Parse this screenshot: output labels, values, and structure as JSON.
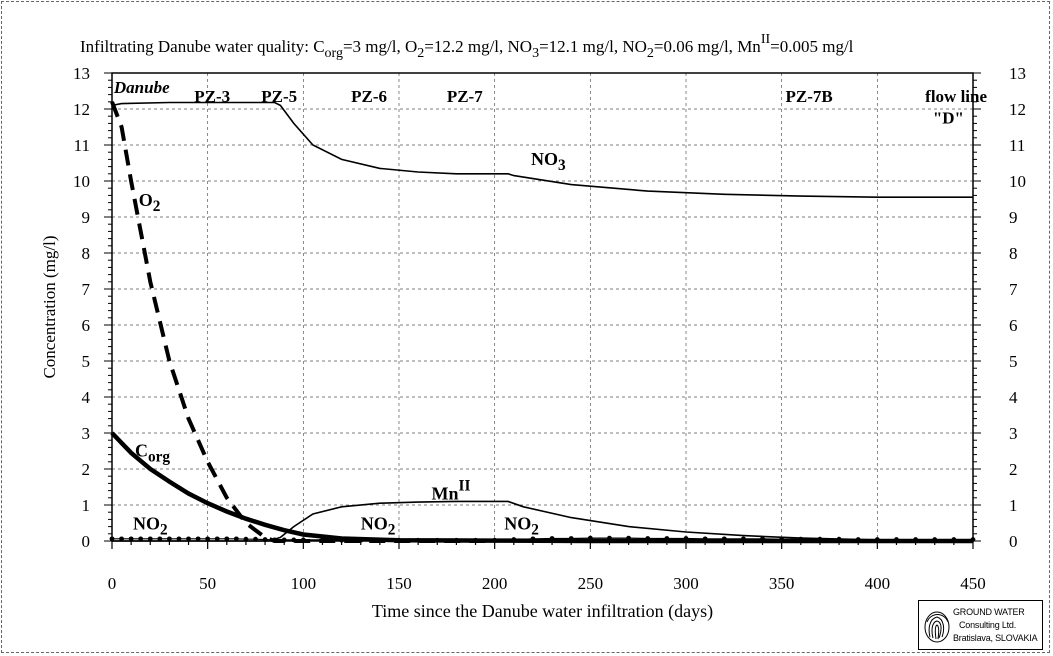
{
  "chart_data": {
    "type": "line",
    "title": {
      "prefix": "Infiltrating Danube water quality: C",
      "parts": [
        {
          "text": "C",
          "sub": "org",
          "sup": "",
          "suffix": "=3 mg/l, "
        },
        {
          "text": "O",
          "sub": "2",
          "sup": "",
          "suffix": "=12.2 mg/l, "
        },
        {
          "text": "NO",
          "sub": "3",
          "sup": "",
          "suffix": "=12.1 mg/l, "
        },
        {
          "text": "NO",
          "sub": "2",
          "sup": "",
          "suffix": "=0.06 mg/l, "
        },
        {
          "text": "Mn",
          "sub": "",
          "sup": "II",
          "suffix": "=0.005 mg/l"
        }
      ],
      "lead": "Infiltrating Danube water quality: "
    },
    "xlabel": "Time since the Danube water infiltration (days)",
    "ylabel": "Concentration (mg/l)",
    "xlim": [
      0,
      450
    ],
    "ylim": [
      0,
      13
    ],
    "x_ticks": [
      0,
      50,
      100,
      150,
      200,
      250,
      300,
      350,
      400,
      450
    ],
    "y_ticks": [
      0,
      1,
      2,
      3,
      4,
      5,
      6,
      7,
      8,
      9,
      10,
      11,
      12,
      13
    ],
    "grid": true,
    "series": [
      {
        "key": "NO3",
        "style": "solid",
        "x": [
          0,
          5,
          30,
          60,
          85,
          88,
          95,
          105,
          120,
          140,
          160,
          180,
          207,
          210,
          240,
          280,
          320,
          360,
          400,
          450
        ],
        "y": [
          12.1,
          12.15,
          12.18,
          12.18,
          12.18,
          12.1,
          11.6,
          11.0,
          10.6,
          10.35,
          10.25,
          10.2,
          10.2,
          10.15,
          9.9,
          9.72,
          9.63,
          9.58,
          9.55,
          9.55
        ]
      },
      {
        "key": "O2",
        "style": "dashed",
        "x": [
          0,
          5,
          10,
          20,
          30,
          40,
          50,
          60,
          70,
          80,
          85,
          90,
          100,
          120,
          150,
          200
        ],
        "y": [
          12.2,
          11.5,
          10.0,
          7.2,
          5.0,
          3.4,
          2.2,
          1.2,
          0.5,
          0.1,
          0.0,
          0.0,
          0.0,
          0.0,
          0.0,
          0.0
        ]
      },
      {
        "key": "Corg",
        "style": "thick",
        "x": [
          0,
          10,
          20,
          30,
          40,
          50,
          60,
          70,
          80,
          90,
          100,
          120,
          150,
          200,
          250,
          300,
          450
        ],
        "y": [
          3.0,
          2.45,
          2.0,
          1.65,
          1.32,
          1.05,
          0.82,
          0.62,
          0.45,
          0.3,
          0.18,
          0.07,
          0.02,
          0.01,
          0.0,
          0.0,
          0.0
        ]
      },
      {
        "key": "MnII",
        "style": "solid",
        "x": [
          0,
          82,
          88,
          95,
          105,
          120,
          140,
          160,
          180,
          207,
          215,
          240,
          270,
          300,
          330,
          360,
          400,
          450
        ],
        "y": [
          0.0,
          0.0,
          0.1,
          0.4,
          0.75,
          0.95,
          1.05,
          1.08,
          1.1,
          1.1,
          0.95,
          0.65,
          0.4,
          0.25,
          0.15,
          0.08,
          0.03,
          0.02
        ]
      },
      {
        "key": "NO2",
        "style": "dotted-marker",
        "x": [
          0,
          5,
          10,
          15,
          20,
          25,
          30,
          35,
          40,
          45,
          50,
          55,
          60,
          65,
          70,
          75,
          80,
          85,
          90,
          95,
          100,
          110,
          120,
          130,
          140,
          150,
          160,
          170,
          180,
          190,
          200,
          210,
          220,
          230,
          240,
          250,
          260,
          270,
          280,
          290,
          300,
          310,
          320,
          330,
          340,
          350,
          360,
          370,
          380,
          390,
          400,
          410,
          420,
          430,
          440,
          450
        ],
        "y": [
          0.06,
          0.06,
          0.06,
          0.06,
          0.06,
          0.06,
          0.06,
          0.06,
          0.06,
          0.06,
          0.06,
          0.06,
          0.06,
          0.06,
          0.05,
          0.05,
          0.04,
          0.03,
          0.03,
          0.03,
          0.03,
          0.03,
          0.02,
          0.02,
          0.02,
          0.02,
          0.02,
          0.02,
          0.02,
          0.02,
          0.02,
          0.04,
          0.06,
          0.07,
          0.07,
          0.08,
          0.08,
          0.08,
          0.07,
          0.07,
          0.07,
          0.06,
          0.06,
          0.06,
          0.06,
          0.05,
          0.05,
          0.05,
          0.05,
          0.04,
          0.04,
          0.04,
          0.04,
          0.04,
          0.04,
          0.04
        ]
      }
    ],
    "annotations": [
      {
        "id": "danube",
        "text": "Danube",
        "x": 1,
        "y": 12.45,
        "italic": true
      },
      {
        "id": "pz3",
        "text": "PZ-3",
        "x": 43,
        "y": 12.2
      },
      {
        "id": "pz5",
        "text": "PZ-5",
        "x": 78,
        "y": 12.2
      },
      {
        "id": "pz6",
        "text": "PZ-6",
        "x": 125,
        "y": 12.2
      },
      {
        "id": "pz7",
        "text": "PZ-7",
        "x": 175,
        "y": 12.2
      },
      {
        "id": "pz7b",
        "text": "PZ-7B",
        "x": 352,
        "y": 12.2
      },
      {
        "id": "flowline1",
        "text": "flow line",
        "x": 425,
        "y": 12.2
      },
      {
        "id": "flowline2",
        "text": "\"D\"",
        "x": 429,
        "y": 11.6
      }
    ],
    "series_labels": [
      {
        "key": "NO3",
        "base": "NO",
        "sub": "3",
        "sup": "",
        "x": 219,
        "y": 10.45
      },
      {
        "key": "O2",
        "base": "O",
        "sub": "2",
        "sup": "",
        "x": 14,
        "y": 9.3
      },
      {
        "key": "Corg",
        "base": "C",
        "sub": "org",
        "sup": "",
        "x": 12,
        "y": 2.35
      },
      {
        "key": "MnII",
        "base": "Mn",
        "sub": "",
        "sup": "II",
        "x": 167,
        "y": 1.15
      },
      {
        "key": "NO2a",
        "base": "NO",
        "sub": "2",
        "sup": "",
        "x": 11,
        "y": 0.32
      },
      {
        "key": "NO2b",
        "base": "NO",
        "sub": "2",
        "sup": "",
        "x": 130,
        "y": 0.32
      },
      {
        "key": "NO2c",
        "base": "NO",
        "sub": "2",
        "sup": "",
        "x": 205,
        "y": 0.32
      }
    ]
  },
  "logo": {
    "line1": "GROUND WATER",
    "line2": "Consulting Ltd.",
    "line3": "Bratislava, SLOVAKIA"
  }
}
